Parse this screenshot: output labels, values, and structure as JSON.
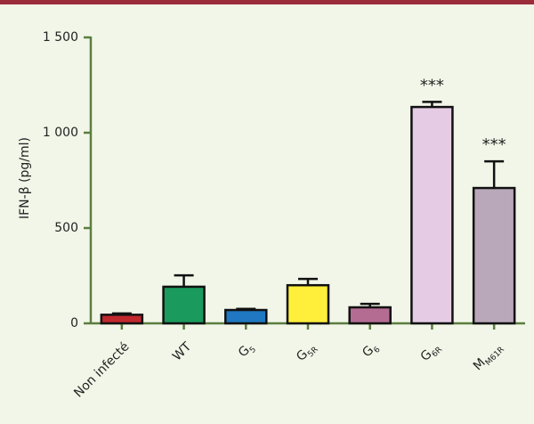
{
  "chart_data": {
    "type": "bar",
    "ylabel": "IFN-β (pg/ml)",
    "categories": [
      [
        "Non infecté"
      ],
      [
        "WT"
      ],
      [
        "G",
        "5"
      ],
      [
        "G",
        "5R"
      ],
      [
        "G",
        "6"
      ],
      [
        "G",
        "6R"
      ],
      [
        "M",
        "M61R"
      ]
    ],
    "values": [
      45,
      192,
      70,
      200,
      84,
      1135,
      710
    ],
    "errors": [
      7,
      60,
      6,
      33,
      18,
      27,
      140
    ],
    "colors": [
      "#c0282e",
      "#1a9a5c",
      "#1f78c1",
      "#ffee3a",
      "#b56c93",
      "#e6cbe5",
      "#b9a8b9"
    ],
    "annotations": [
      null,
      null,
      null,
      null,
      null,
      "***",
      "***"
    ],
    "ylim": [
      0,
      1500
    ],
    "yticks": [
      0,
      500,
      {
        "value": 1000,
        "label": "1 000"
      },
      {
        "value": 1500,
        "label": "1 500"
      }
    ]
  }
}
